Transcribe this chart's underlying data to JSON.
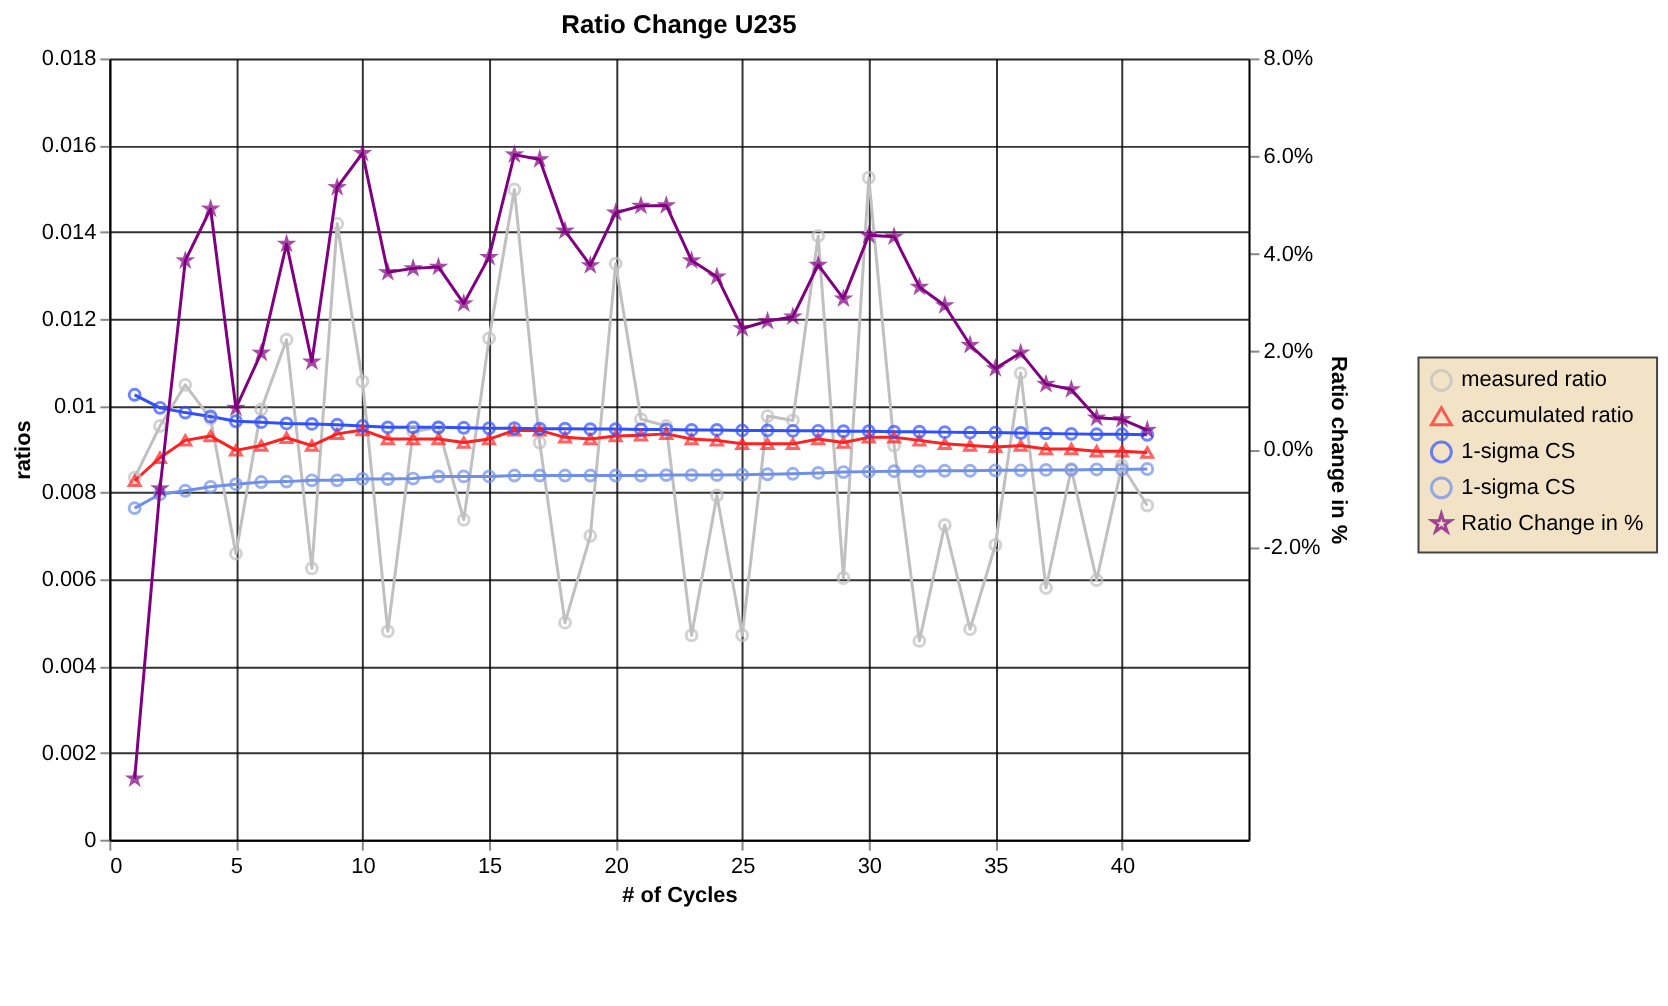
{
  "chart_data": {
    "type": "line",
    "title": "Ratio Change U235",
    "xlabel": "# of Cycles",
    "ylabel": "ratios",
    "y2label": "Ratio change in %",
    "x": [
      1,
      2,
      3,
      4,
      5,
      6,
      7,
      8,
      9,
      10,
      11,
      12,
      13,
      14,
      15,
      16,
      17,
      18,
      19,
      20,
      21,
      22,
      23,
      24,
      25,
      26,
      27,
      28,
      29,
      30,
      31,
      32,
      33,
      34,
      35,
      36,
      37,
      38,
      39,
      40,
      41
    ],
    "xlim": [
      0,
      45
    ],
    "xticks": [
      0,
      5,
      10,
      15,
      20,
      25,
      30,
      35,
      40
    ],
    "ylim": [
      0,
      0.018
    ],
    "yticks": [
      0,
      0.002,
      0.004,
      0.006,
      0.008,
      0.01,
      0.012,
      0.014,
      0.016,
      0.018
    ],
    "y2lim": [
      -8,
      8
    ],
    "y2ticks": [
      {
        "value": 8,
        "label": "8.0%"
      },
      {
        "value": 6,
        "label": "6.0%"
      },
      {
        "value": 4,
        "label": "4.0%"
      },
      {
        "value": 2,
        "label": "2.0%"
      },
      {
        "value": 0,
        "label": "0.0%"
      },
      {
        "value": -2,
        "label": "-2.0%"
      }
    ],
    "grid": true,
    "legend": "right",
    "series": [
      {
        "name": "measured ratio",
        "color": "#c0c0c0",
        "marker": "circle",
        "values": [
          0.00834,
          0.00953,
          0.01048,
          0.0097,
          0.00659,
          0.00991,
          0.01152,
          0.00625,
          0.01419,
          0.01056,
          0.0048,
          0.0094,
          0.0095,
          0.00737,
          0.01155,
          0.01498,
          0.00915,
          0.005,
          0.007,
          0.01327,
          0.00969,
          0.00953,
          0.00471,
          0.00793,
          0.00471,
          0.00976,
          0.00966,
          0.01391,
          0.00603,
          0.01525,
          0.00908,
          0.00458,
          0.00725,
          0.00485,
          0.00679,
          0.01075,
          0.0058,
          0.00854,
          0.00598,
          0.00862,
          0.0077
        ]
      },
      {
        "name": "accumulated ratio",
        "color": "#ff2020",
        "marker": "triangle",
        "values": [
          0.00827,
          0.0088,
          0.0092,
          0.0093,
          0.00897,
          0.00908,
          0.00926,
          0.00908,
          0.00935,
          0.00944,
          0.00923,
          0.00923,
          0.00923,
          0.00915,
          0.00923,
          0.00943,
          0.00943,
          0.00927,
          0.00923,
          0.0093,
          0.00932,
          0.00935,
          0.00923,
          0.0092,
          0.00912,
          0.00912,
          0.00912,
          0.00923,
          0.00915,
          0.00927,
          0.00927,
          0.0092,
          0.00912,
          0.00908,
          0.00905,
          0.00908,
          0.009,
          0.009,
          0.00895,
          0.00895,
          0.00892
        ]
      },
      {
        "name": "1-sigma CS",
        "color": "#3050ff",
        "marker": "circle",
        "values": [
          0.01025,
          0.00995,
          0.00984,
          0.00975,
          0.00964,
          0.00962,
          0.00959,
          0.00958,
          0.00956,
          0.00953,
          0.0095,
          0.0095,
          0.0095,
          0.00949,
          0.00948,
          0.00948,
          0.00947,
          0.00947,
          0.00946,
          0.00946,
          0.00945,
          0.00945,
          0.00944,
          0.00944,
          0.00943,
          0.00943,
          0.00942,
          0.00942,
          0.00941,
          0.00941,
          0.0094,
          0.0094,
          0.00939,
          0.00938,
          0.00938,
          0.00937,
          0.00936,
          0.00935,
          0.00934,
          0.00934,
          0.00933
        ]
      },
      {
        "name": "1-sigma CS",
        "color": "#7090e8",
        "marker": "circle",
        "values": [
          0.00764,
          0.00796,
          0.00804,
          0.00813,
          0.00819,
          0.00824,
          0.00825,
          0.00828,
          0.00828,
          0.00831,
          0.00831,
          0.00832,
          0.00837,
          0.00837,
          0.00837,
          0.00839,
          0.00839,
          0.00839,
          0.00839,
          0.00839,
          0.00839,
          0.0084,
          0.0084,
          0.0084,
          0.00841,
          0.00842,
          0.00843,
          0.00845,
          0.00847,
          0.00848,
          0.00849,
          0.00849,
          0.0085,
          0.0085,
          0.00851,
          0.00851,
          0.00852,
          0.00852,
          0.00853,
          0.00853,
          0.00854
        ]
      },
      {
        "name": "Ratio Change in %",
        "color": "#800080",
        "marker": "star",
        "axis": "y2",
        "values": [
          -6.75,
          -0.81,
          3.86,
          4.92,
          0.84,
          1.97,
          4.2,
          1.79,
          5.36,
          6.06,
          3.62,
          3.7,
          3.73,
          2.98,
          3.93,
          6.03,
          5.93,
          4.47,
          3.76,
          4.84,
          4.98,
          4.99,
          3.86,
          3.53,
          2.47,
          2.62,
          2.71,
          3.77,
          3.08,
          4.38,
          4.35,
          3.32,
          2.94,
          2.13,
          1.65,
          1.97,
          1.33,
          1.22,
          0.64,
          0.61,
          0.39
        ]
      }
    ]
  }
}
